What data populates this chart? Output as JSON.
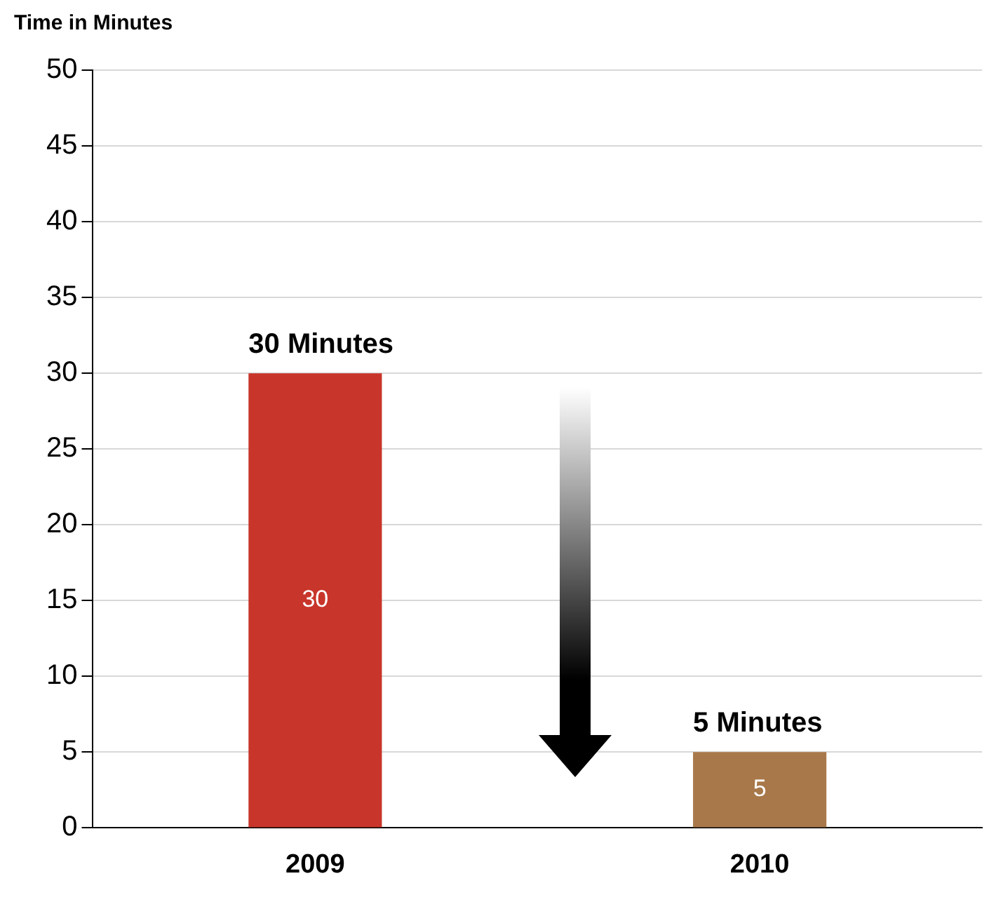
{
  "chart_data": {
    "type": "bar",
    "ylabel": "Time in Minutes",
    "categories": [
      "2009",
      "2010"
    ],
    "values": [
      30,
      5
    ],
    "colors": [
      "#c8352a",
      "#a8784a"
    ],
    "ylim": [
      0,
      50
    ],
    "yticks": [
      0,
      5,
      10,
      15,
      20,
      25,
      30,
      35,
      40,
      45,
      50
    ],
    "grid": "y",
    "legend": false,
    "data_labels": true,
    "annotations": [
      {
        "text": "30 Minutes",
        "x": "2009",
        "y": 30
      },
      {
        "text": "5 Minutes",
        "x": "2010",
        "y": 5
      }
    ]
  }
}
